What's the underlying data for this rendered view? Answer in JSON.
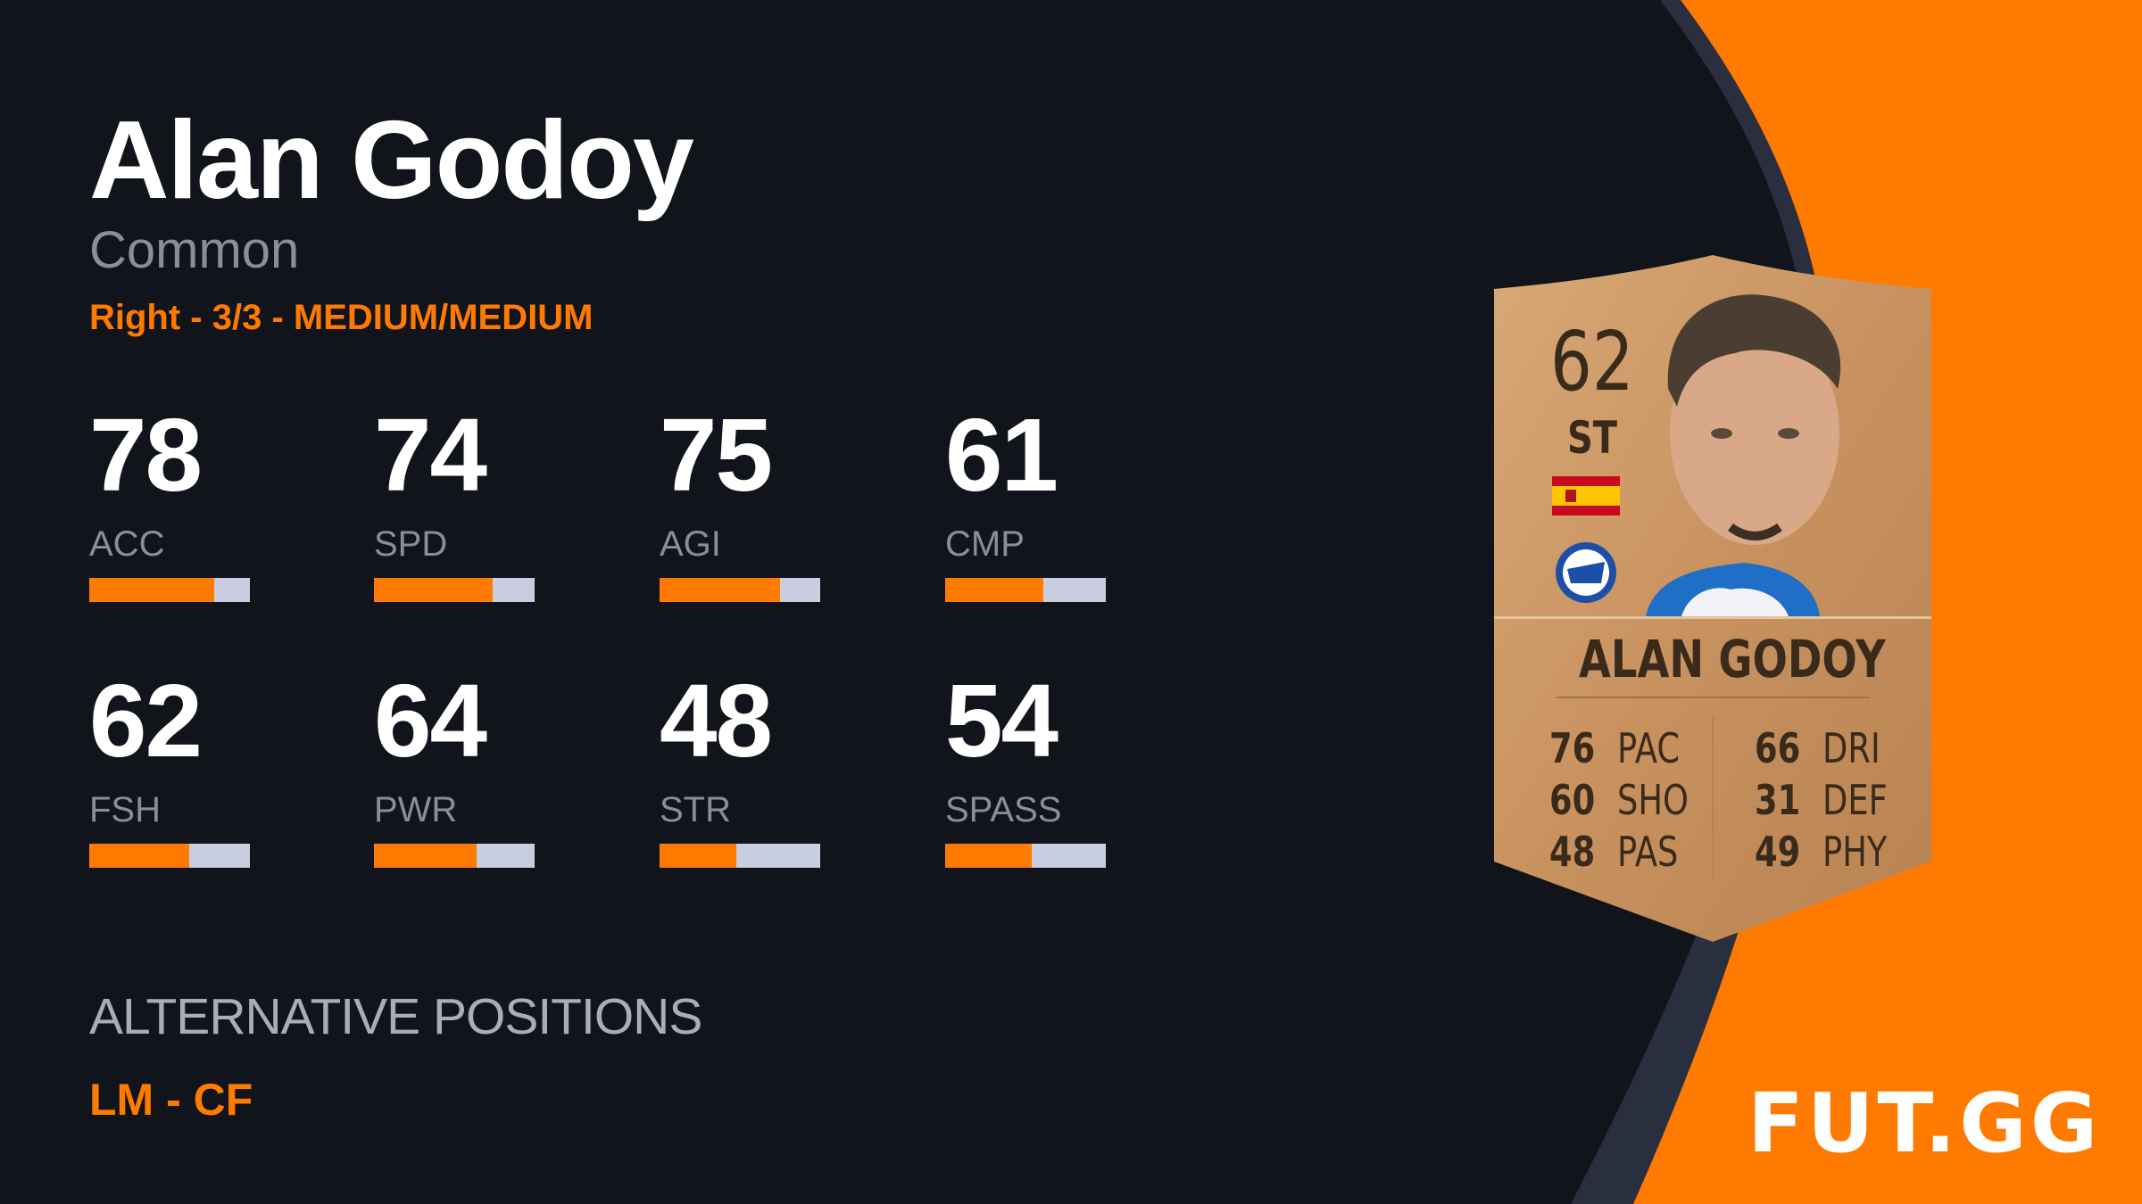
{
  "player": {
    "name": "Alan Godoy",
    "rarity": "Common",
    "foot_skill_workrate": "Right - 3/3 - MEDIUM/MEDIUM"
  },
  "stats": [
    {
      "label": "ACC",
      "value": 78
    },
    {
      "label": "SPD",
      "value": 74
    },
    {
      "label": "AGI",
      "value": 75
    },
    {
      "label": "CMP",
      "value": 61
    },
    {
      "label": "FSH",
      "value": 62
    },
    {
      "label": "PWR",
      "value": 64
    },
    {
      "label": "STR",
      "value": 48
    },
    {
      "label": "SPASS",
      "value": 54
    }
  ],
  "alternative_positions": {
    "heading": "ALTERNATIVE POSITIONS",
    "value": "LM - CF"
  },
  "card": {
    "rating": "62",
    "position": "ST",
    "name": "ALAN GODOY",
    "nation_icon": "spain-flag-icon",
    "club_icon": "alaves-crest-icon",
    "left_stats": [
      {
        "value": "76",
        "label": "PAC"
      },
      {
        "value": "60",
        "label": "SHO"
      },
      {
        "value": "48",
        "label": "PAS"
      }
    ],
    "right_stats": [
      {
        "value": "66",
        "label": "DRI"
      },
      {
        "value": "31",
        "label": "DEF"
      },
      {
        "value": "49",
        "label": "PHY"
      }
    ]
  },
  "brand": {
    "logo": "FUT.GG"
  },
  "colors": {
    "background": "#12141c",
    "accent": "#ff7a00",
    "bar_track": "#c9cde0",
    "band": "#2a2f40"
  }
}
